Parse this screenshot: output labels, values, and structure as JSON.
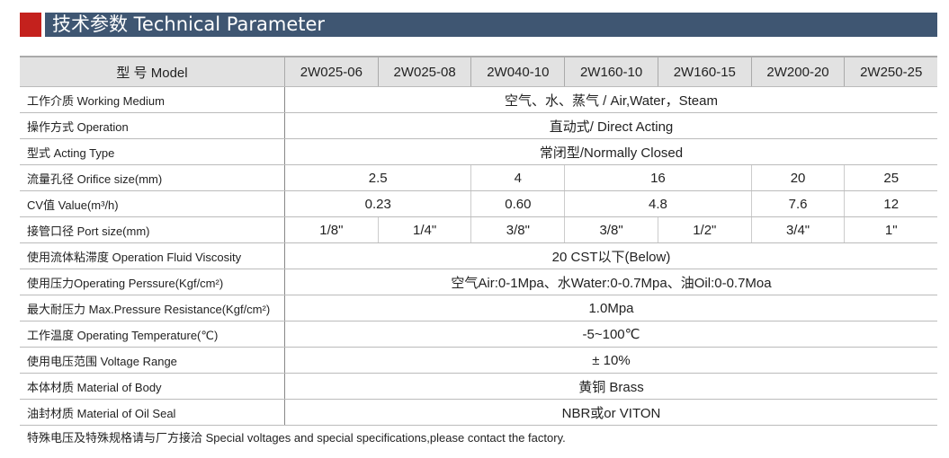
{
  "title": "技术参数 Technical Parameter",
  "colors": {
    "accent_red": "#c4211d",
    "header_blue": "#3f5672"
  },
  "model_label": "型 号 Model",
  "models": [
    "2W025-06",
    "2W025-08",
    "2W040-10",
    "2W160-10",
    "2W160-15",
    "2W200-20",
    "2W250-25"
  ],
  "rows": {
    "medium": {
      "label": "工作介质 Working Medium",
      "value": "空气、水、蒸气 / Air,Water，Steam"
    },
    "operation": {
      "label": "操作方式 Operation",
      "value": "直动式/ Direct Acting"
    },
    "acting": {
      "label": "型式 Acting Type",
      "value": "常闭型/Normally Closed"
    },
    "orifice": {
      "label": "流量孔径 Orifice size(mm)",
      "values": [
        "2.5",
        "4",
        "16",
        "20",
        "25"
      ]
    },
    "cv": {
      "label": "CV值 Value(m³/h)",
      "values": [
        "0.23",
        "0.60",
        "4.8",
        "7.6",
        "12"
      ]
    },
    "port": {
      "label": "接管口径 Port size(mm)",
      "values": [
        "1/8\"",
        "1/4\"",
        "3/8\"",
        "3/8\"",
        "1/2\"",
        "3/4\"",
        "1\""
      ]
    },
    "viscosity": {
      "label": "使用流体粘滞度 Operation Fluid Viscosity",
      "value": "20 CST以下(Below)"
    },
    "pressure": {
      "label": "使用压力Operating Perssure(Kgf/cm²)",
      "value": "空气Air:0-1Mpa、水Water:0-0.7Mpa、油Oil:0-0.7Moa"
    },
    "maxpressure": {
      "label": "最大耐压力 Max.Pressure Resistance(Kgf/cm²)",
      "value": "1.0Mpa"
    },
    "temperature": {
      "label": "工作温度 Operating Temperature(℃)",
      "value": "-5~100℃"
    },
    "voltage": {
      "label": "使用电压范围 Voltage Range",
      "value": "± 10%"
    },
    "body": {
      "label": "本体材质 Material of Body",
      "value": "黄铜 Brass"
    },
    "seal": {
      "label": "油封材质 Material of Oil Seal",
      "value": "NBR或or VITON"
    }
  },
  "note": "特殊电压及特殊规格请与厂方接洽 Special voltages and special specifications,please contact the factory."
}
